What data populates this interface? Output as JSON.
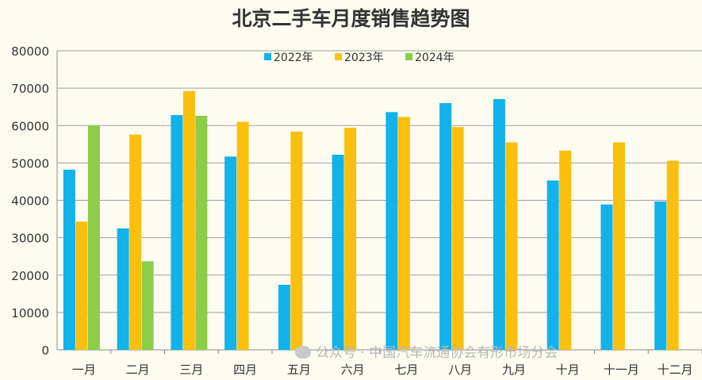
{
  "chart_data": {
    "type": "bar",
    "title": "北京二手车月度销售趋势图",
    "categories": [
      "一月",
      "二月",
      "三月",
      "四月",
      "五月",
      "六月",
      "七月",
      "八月",
      "九月",
      "十月",
      "十一月",
      "十二月"
    ],
    "series": [
      {
        "name": "2022年",
        "color": "#12b2ea",
        "values": [
          48200,
          32500,
          62800,
          51700,
          17400,
          52200,
          63600,
          66000,
          67100,
          45300,
          38900,
          39700
        ]
      },
      {
        "name": "2023年",
        "color": "#fbbf0d",
        "values": [
          34300,
          57600,
          69200,
          61000,
          58400,
          59400,
          62300,
          59600,
          55500,
          53300,
          55500,
          50600
        ]
      },
      {
        "name": "2024年",
        "color": "#8ccd4a",
        "values": [
          60000,
          23700,
          62600,
          null,
          null,
          null,
          null,
          null,
          null,
          null,
          null,
          null
        ]
      }
    ],
    "y_ticks": [
      "0",
      "10000",
      "20000",
      "30000",
      "40000",
      "50000",
      "60000",
      "70000",
      "80000"
    ],
    "ylim": [
      0,
      80000
    ],
    "grid": true,
    "legend": "top"
  },
  "watermark": "公众号 · 中国汽车流通协会有形市场分会"
}
